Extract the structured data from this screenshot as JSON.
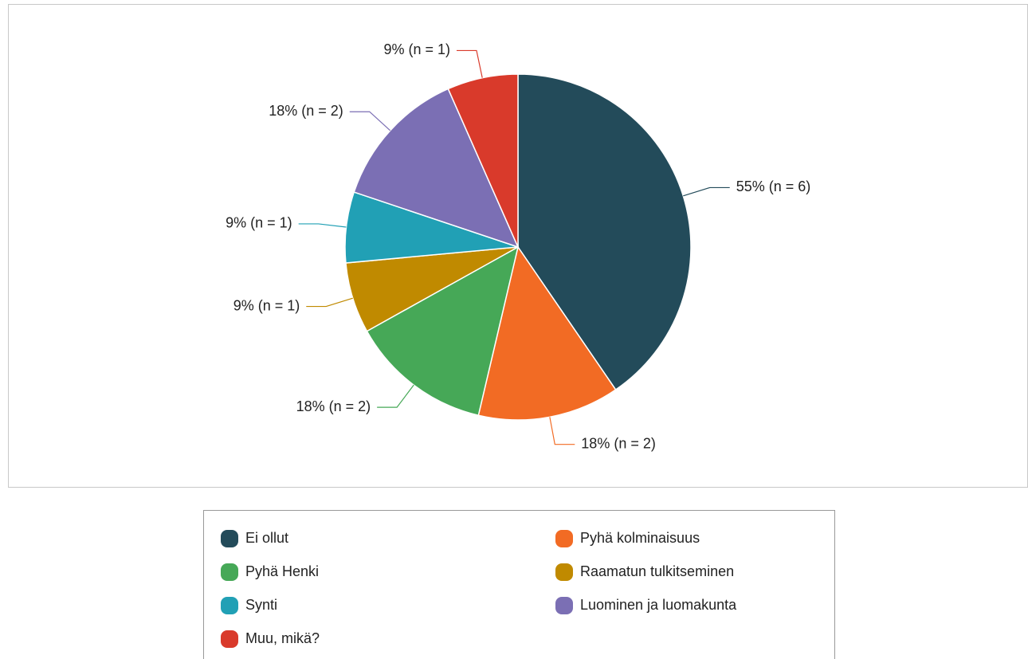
{
  "chart_data": {
    "type": "pie",
    "categories": [
      "Ei ollut",
      "Pyhä kolminaisuus",
      "Pyhä Henki",
      "Raamatun tulkitseminen",
      "Synti",
      "Luominen ja luomakunta",
      "Muu, mikä?"
    ],
    "values": [
      55,
      18,
      18,
      9,
      9,
      18,
      9
    ],
    "value_labels": [
      "55% (n = 6)",
      "18% (n = 2)",
      "18% (n = 2)",
      "9% (n = 1)",
      "9% (n = 1)",
      "18% (n = 2)",
      "9% (n = 1)"
    ],
    "colors": [
      "#234b5a",
      "#f26b24",
      "#46a857",
      "#c08a00",
      "#21a0b5",
      "#7b6fb4",
      "#d93a2b"
    ],
    "legend": "bottom"
  }
}
